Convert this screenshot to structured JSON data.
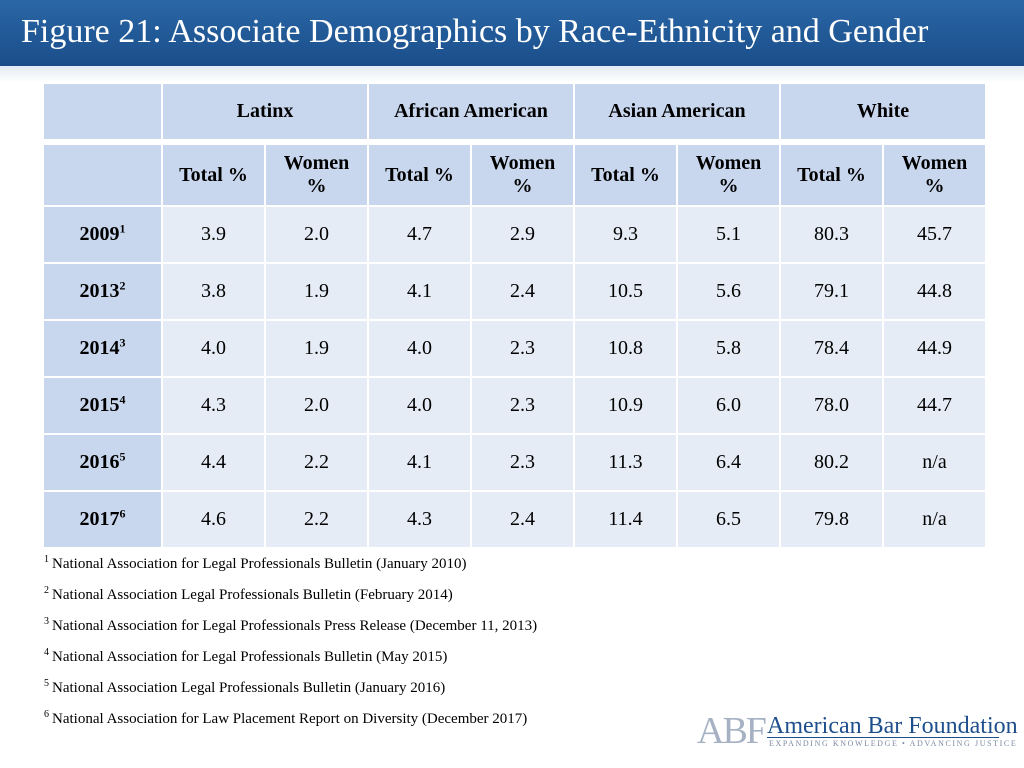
{
  "title": "Figure 21: Associate Demographics by Race-Ethnicity and Gender",
  "table": {
    "groups": [
      "Latinx",
      "African American",
      "Asian American",
      "White"
    ],
    "subheaders": [
      "Total %",
      "Women %"
    ],
    "rows": [
      {
        "year": "2009",
        "note": "1",
        "values": [
          "3.9",
          "2.0",
          "4.7",
          "2.9",
          "9.3",
          "5.1",
          "80.3",
          "45.7"
        ]
      },
      {
        "year": "2013",
        "note": "2",
        "values": [
          "3.8",
          "1.9",
          "4.1",
          "2.4",
          "10.5",
          "5.6",
          "79.1",
          "44.8"
        ]
      },
      {
        "year": "2014",
        "note": "3",
        "values": [
          "4.0",
          "1.9",
          "4.0",
          "2.3",
          "10.8",
          "5.8",
          "78.4",
          "44.9"
        ]
      },
      {
        "year": "2015",
        "note": "4",
        "values": [
          "4.3",
          "2.0",
          "4.0",
          "2.3",
          "10.9",
          "6.0",
          "78.0",
          "44.7"
        ]
      },
      {
        "year": "2016",
        "note": "5",
        "values": [
          "4.4",
          "2.2",
          "4.1",
          "2.3",
          "11.3",
          "6.4",
          "80.2",
          "n/a"
        ]
      },
      {
        "year": "2017",
        "note": "6",
        "values": [
          "4.6",
          "2.2",
          "4.3",
          "2.4",
          "11.4",
          "6.5",
          "79.8",
          "n/a"
        ]
      }
    ]
  },
  "footnotes": [
    {
      "num": "1",
      "text": "National Association for Legal Professionals Bulletin (January 2010)"
    },
    {
      "num": "2",
      "text": "National Association Legal Professionals Bulletin (February 2014)"
    },
    {
      "num": "3",
      "text": "National Association for Legal Professionals Press Release (December 11, 2013)"
    },
    {
      "num": "4",
      "text": "National Association for Legal Professionals Bulletin (May 2015)"
    },
    {
      "num": "5",
      "text": "National Association Legal Professionals Bulletin (January 2016)"
    },
    {
      "num": "6",
      "text": "National Association for Law Placement Report on Diversity (December 2017)"
    }
  ],
  "logo": {
    "mark": "ABF",
    "name": "American Bar Foundation",
    "tagline": "EXPANDING KNOWLEDGE • ADVANCING JUSTICE"
  },
  "colors": {
    "title_bar": "#1f5896",
    "header_cell": "#c9d7ee",
    "body_cell": "#e6ecf6",
    "logo_text": "#1d4f8c"
  }
}
